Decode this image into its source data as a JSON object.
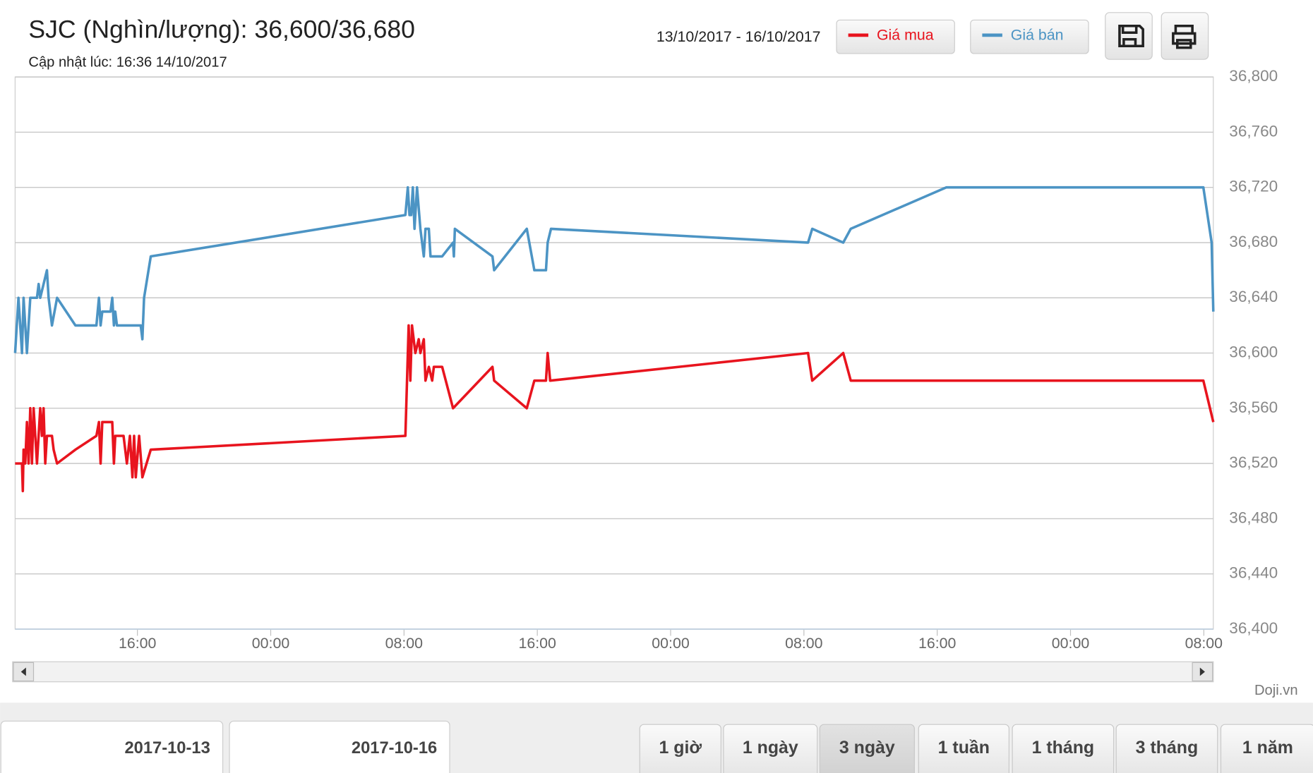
{
  "chart_data": {
    "type": "line",
    "title": "SJC (Nghìn/lượng): 36,600/36,680",
    "subtitle": "Cập nhật lúc: 16:36 14/10/2017",
    "date_range": "13/10/2017 - 16/10/2017",
    "credit": "Doji.vn",
    "date_inputs": [
      "2017-10-13",
      "2017-10-16"
    ],
    "range_buttons": [
      "1 giờ",
      "1 ngày",
      "3 ngày",
      "1 tuần",
      "1 tháng",
      "3 tháng",
      "1 năm"
    ],
    "active_range": 2,
    "xlim": [
      8.66,
      80.57
    ],
    "xticks": [
      {
        "value": 16,
        "label": "16:00"
      },
      {
        "value": 24,
        "label": "00:00"
      },
      {
        "value": 32,
        "label": "08:00"
      },
      {
        "value": 40,
        "label": "16:00"
      },
      {
        "value": 48,
        "label": "00:00"
      },
      {
        "value": 56,
        "label": "08:00"
      },
      {
        "value": 64,
        "label": "16:00"
      },
      {
        "value": 72,
        "label": "00:00"
      },
      {
        "value": 80,
        "label": "08:00"
      }
    ],
    "ylim": [
      36400,
      36800
    ],
    "yticks": [
      {
        "value": 36400,
        "label": "36,400"
      },
      {
        "value": 36440,
        "label": "36,440"
      },
      {
        "value": 36480,
        "label": "36,480"
      },
      {
        "value": 36520,
        "label": "36,520"
      },
      {
        "value": 36560,
        "label": "36,560"
      },
      {
        "value": 36600,
        "label": "36,600"
      },
      {
        "value": 36640,
        "label": "36,640"
      },
      {
        "value": 36680,
        "label": "36,680"
      },
      {
        "value": 36720,
        "label": "36,720"
      },
      {
        "value": 36760,
        "label": "36,760"
      },
      {
        "value": 36800,
        "label": "36,800"
      }
    ],
    "grid": true,
    "series": [
      {
        "name": "Giá mua",
        "color": "#e8141e",
        "x": [
          8.66,
          9.07,
          9.12,
          9.17,
          9.27,
          9.37,
          9.47,
          9.57,
          9.67,
          9.77,
          9.87,
          9.97,
          10.17,
          10.27,
          10.37,
          10.47,
          10.57,
          10.87,
          10.97,
          11.18,
          12.28,
          13.54,
          13.69,
          13.79,
          13.89,
          14.49,
          14.59,
          14.67,
          15.17,
          15.37,
          15.55,
          15.7,
          15.8,
          15.9,
          16.1,
          16.3,
          16.8,
          32.08,
          32.28,
          32.38,
          32.48,
          32.68,
          32.88,
          32.98,
          33.19,
          33.29,
          33.49,
          33.69,
          33.79,
          34.29,
          34.94,
          37.31,
          37.41,
          39.37,
          39.82,
          40.52,
          40.62,
          40.77,
          56.25,
          56.5,
          58.36,
          58.81,
          79.97,
          80.57
        ],
        "values": [
          36520,
          36520,
          36500,
          36530,
          36520,
          36550,
          36520,
          36560,
          36520,
          36560,
          36540,
          36520,
          36560,
          36540,
          36560,
          36520,
          36540,
          36540,
          36530,
          36520,
          36530,
          36540,
          36550,
          36520,
          36550,
          36550,
          36520,
          36540,
          36540,
          36520,
          36540,
          36510,
          36540,
          36510,
          36540,
          36510,
          36530,
          36540,
          36620,
          36580,
          36620,
          36600,
          36610,
          36600,
          36610,
          36580,
          36590,
          36580,
          36590,
          36590,
          36560,
          36590,
          36580,
          36560,
          36580,
          36580,
          36600,
          36580,
          36600,
          36580,
          36600,
          36580,
          36580,
          36550
        ]
      },
      {
        "name": "Giá bán",
        "color": "#4c94c4",
        "x": [
          8.66,
          8.86,
          9.07,
          9.17,
          9.37,
          9.57,
          9.97,
          10.07,
          10.17,
          10.57,
          10.67,
          10.87,
          11.18,
          12.28,
          13.54,
          13.69,
          13.79,
          13.89,
          14.39,
          14.49,
          14.59,
          14.67,
          14.77,
          16.2,
          16.3,
          16.4,
          16.8,
          32.08,
          32.23,
          32.33,
          32.43,
          32.53,
          32.63,
          32.78,
          32.98,
          33.19,
          33.29,
          33.49,
          33.59,
          34.29,
          34.94,
          34.99,
          35.05,
          37.31,
          37.41,
          39.37,
          39.82,
          40.52,
          40.62,
          40.82,
          56.25,
          56.5,
          58.36,
          58.81,
          64.54,
          79.97,
          80.47,
          80.57
        ],
        "values": [
          36600,
          36640,
          36600,
          36640,
          36600,
          36640,
          36640,
          36650,
          36640,
          36660,
          36640,
          36620,
          36640,
          36620,
          36620,
          36640,
          36620,
          36630,
          36630,
          36640,
          36620,
          36630,
          36620,
          36620,
          36610,
          36640,
          36670,
          36700,
          36720,
          36700,
          36700,
          36720,
          36690,
          36720,
          36690,
          36670,
          36690,
          36690,
          36670,
          36670,
          36680,
          36670,
          36690,
          36670,
          36660,
          36690,
          36660,
          36660,
          36680,
          36690,
          36680,
          36690,
          36680,
          36690,
          36720,
          36720,
          36680,
          36630
        ]
      }
    ]
  }
}
